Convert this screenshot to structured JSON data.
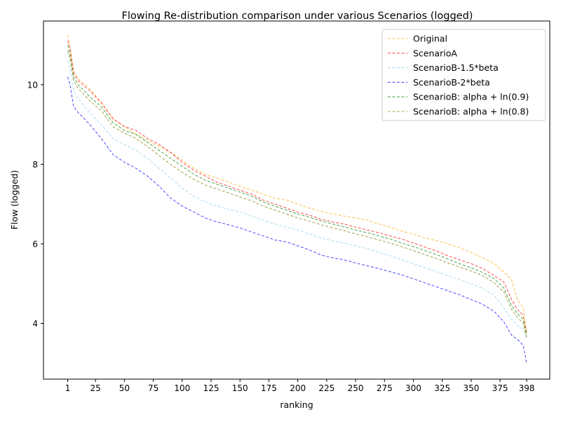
{
  "chart_data": {
    "type": "line",
    "title": "Flowing Re-distribution comparison under various Scenarios (logged)",
    "xlabel": "ranking",
    "ylabel": "Flow (logged)",
    "xlim": [
      -20,
      418
    ],
    "ylim": [
      2.6,
      11.6
    ],
    "xticks": [
      1,
      25,
      50,
      75,
      100,
      125,
      150,
      175,
      200,
      225,
      250,
      275,
      300,
      325,
      350,
      375,
      398
    ],
    "xtick_labels": [
      "1",
      "25",
      "50",
      "75",
      "100",
      "125",
      "150",
      "175",
      "200",
      "225",
      "250",
      "275",
      "300",
      "325",
      "350",
      "375",
      "398"
    ],
    "yticks": [
      4,
      6,
      8,
      10
    ],
    "ytick_labels": [
      "4",
      "6",
      "8",
      "10"
    ],
    "grid": false,
    "legend_position": "top-right",
    "x": [
      1,
      3,
      6,
      10,
      20,
      30,
      40,
      50,
      60,
      70,
      80,
      90,
      100,
      110,
      120,
      130,
      140,
      150,
      160,
      170,
      180,
      190,
      200,
      210,
      220,
      230,
      240,
      250,
      260,
      270,
      280,
      290,
      300,
      310,
      320,
      330,
      340,
      350,
      360,
      370,
      378,
      385,
      390,
      395,
      398
    ],
    "series": [
      {
        "name": "Original",
        "color": "#ffa500",
        "values": [
          11.25,
          10.95,
          10.35,
          10.15,
          9.9,
          9.55,
          9.15,
          8.95,
          8.75,
          8.6,
          8.45,
          8.3,
          8.1,
          7.9,
          7.75,
          7.65,
          7.55,
          7.45,
          7.35,
          7.25,
          7.15,
          7.1,
          7.0,
          6.9,
          6.82,
          6.75,
          6.7,
          6.65,
          6.6,
          6.5,
          6.42,
          6.32,
          6.25,
          6.15,
          6.08,
          6.0,
          5.9,
          5.78,
          5.65,
          5.5,
          5.3,
          5.1,
          4.6,
          4.4,
          3.75
        ]
      },
      {
        "name": "ScenarioA",
        "color": "#ff0000",
        "values": [
          11.1,
          10.9,
          10.3,
          10.1,
          9.85,
          9.55,
          9.15,
          8.95,
          8.85,
          8.65,
          8.5,
          8.3,
          8.05,
          7.85,
          7.7,
          7.55,
          7.45,
          7.35,
          7.25,
          7.1,
          7.0,
          6.9,
          6.8,
          6.72,
          6.62,
          6.55,
          6.5,
          6.42,
          6.35,
          6.28,
          6.2,
          6.12,
          6.02,
          5.92,
          5.82,
          5.7,
          5.6,
          5.5,
          5.38,
          5.2,
          5.05,
          4.6,
          4.35,
          4.2,
          3.75
        ]
      },
      {
        "name": "ScenarioB-1.5*beta",
        "color": "#87ceeb",
        "values": [
          10.6,
          10.4,
          9.85,
          9.65,
          9.3,
          9.0,
          8.65,
          8.5,
          8.35,
          8.15,
          7.9,
          7.65,
          7.4,
          7.2,
          7.05,
          6.95,
          6.87,
          6.8,
          6.7,
          6.6,
          6.5,
          6.42,
          6.35,
          6.25,
          6.15,
          6.08,
          6.02,
          5.95,
          5.88,
          5.78,
          5.7,
          5.6,
          5.5,
          5.4,
          5.3,
          5.2,
          5.1,
          5.0,
          4.88,
          4.7,
          4.4,
          4.1,
          3.95,
          3.85,
          3.62
        ]
      },
      {
        "name": "ScenarioB-2*beta",
        "color": "#0000ff",
        "values": [
          10.2,
          10.0,
          9.45,
          9.3,
          9.0,
          8.65,
          8.25,
          8.05,
          7.9,
          7.7,
          7.45,
          7.15,
          6.95,
          6.8,
          6.65,
          6.55,
          6.48,
          6.4,
          6.3,
          6.2,
          6.1,
          6.05,
          5.95,
          5.85,
          5.72,
          5.65,
          5.6,
          5.52,
          5.45,
          5.38,
          5.3,
          5.22,
          5.12,
          5.02,
          4.92,
          4.82,
          4.72,
          4.6,
          4.48,
          4.3,
          4.05,
          3.7,
          3.6,
          3.45,
          3.0
        ]
      },
      {
        "name": "ScenarioB: alpha + ln(0.9)",
        "color": "#008000",
        "values": [
          11.0,
          10.75,
          10.2,
          10.0,
          9.7,
          9.45,
          9.05,
          8.85,
          8.75,
          8.55,
          8.35,
          8.15,
          7.95,
          7.75,
          7.6,
          7.5,
          7.4,
          7.3,
          7.2,
          7.05,
          6.95,
          6.85,
          6.75,
          6.67,
          6.58,
          6.5,
          6.43,
          6.35,
          6.28,
          6.2,
          6.12,
          6.02,
          5.93,
          5.83,
          5.73,
          5.62,
          5.5,
          5.4,
          5.28,
          5.12,
          4.9,
          4.45,
          4.25,
          4.1,
          3.7
        ]
      },
      {
        "name": "ScenarioB: alpha + ln(0.8)",
        "color": "#808000",
        "values": [
          10.85,
          10.65,
          10.1,
          9.9,
          9.6,
          9.35,
          8.95,
          8.78,
          8.65,
          8.45,
          8.22,
          8.0,
          7.8,
          7.62,
          7.48,
          7.38,
          7.28,
          7.18,
          7.08,
          6.95,
          6.85,
          6.75,
          6.65,
          6.57,
          6.48,
          6.4,
          6.33,
          6.25,
          6.18,
          6.1,
          6.02,
          5.93,
          5.83,
          5.73,
          5.63,
          5.52,
          5.42,
          5.32,
          5.2,
          5.02,
          4.8,
          4.35,
          4.15,
          4.0,
          3.65
        ]
      }
    ]
  }
}
